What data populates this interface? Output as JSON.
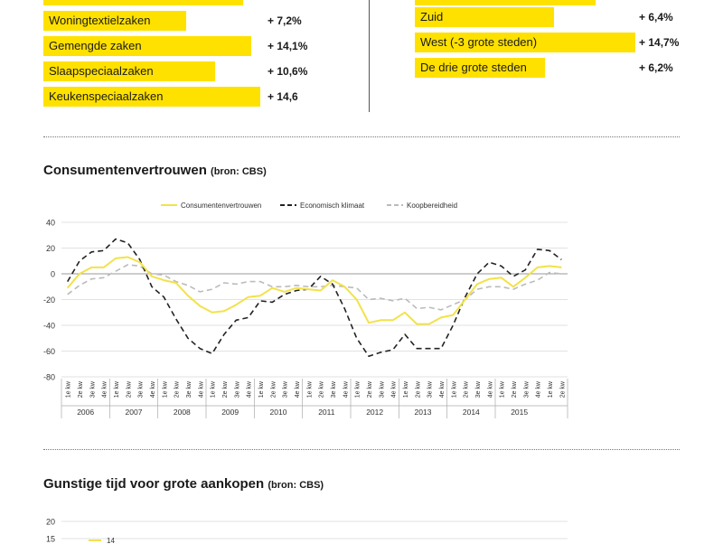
{
  "left_bars": [
    {
      "label": "",
      "value": "",
      "pct": 0.92
    },
    {
      "label": "Woningtextielzaken",
      "value": "+ 7,2%",
      "pct": 0.66
    },
    {
      "label": "Gemengde zaken",
      "value": "+ 14,1%",
      "pct": 0.96
    },
    {
      "label": "Slaapspeciaalzaken",
      "value": "+ 10,6%",
      "pct": 0.79
    },
    {
      "label": "Keukenspeciaalzaken",
      "value": "+ 14,6",
      "pct": 1.0
    }
  ],
  "right_bars": [
    {
      "label": "",
      "value": "",
      "pct": 0.82
    },
    {
      "label": "Zuid",
      "value": "+ 6,4%",
      "pct": 0.63
    },
    {
      "label": "West (-3 grote steden)",
      "value": "+ 14,7%",
      "pct": 1.0
    },
    {
      "label": "De drie grote steden",
      "value": "+ 6,2%",
      "pct": 0.59
    }
  ],
  "colors": {
    "accent": "#ffe100",
    "dark": "#222222",
    "grey": "#bbbbbb"
  },
  "chart1_title": "Consumentenvertrouwen",
  "chart1_source": "(bron: CBS)",
  "chart2_title": "Gunstige tijd voor grote aankopen",
  "chart2_source": "(bron: CBS)",
  "chart_data": [
    {
      "type": "line",
      "title": "Consumentenvertrouwen",
      "ylim": [
        -80,
        40
      ],
      "yticks": [
        40,
        20,
        0,
        -20,
        -40,
        -60,
        -80
      ],
      "grid": true,
      "legend_position": "top-center",
      "quarter_labels": [
        "1e kw",
        "2e kw",
        "3e kw",
        "4e kw"
      ],
      "years": [
        "2006",
        "2007",
        "2008",
        "2009",
        "2010",
        "2011",
        "2012",
        "2013",
        "2014",
        "2015"
      ],
      "series": [
        {
          "name": "Consumentenvertrouwen",
          "style": "solid",
          "color": "#f2e24a",
          "values": [
            -11,
            0,
            5,
            5,
            12,
            13,
            9,
            -2,
            -5,
            -7,
            -17,
            -25,
            -30,
            -29,
            -24,
            -18,
            -17,
            -11,
            -14,
            -11,
            -12,
            -13,
            -5,
            -10,
            -20,
            -38,
            -36,
            -36,
            -30,
            -39,
            -39,
            -34,
            -32,
            -20,
            -8,
            -4,
            -3,
            -10,
            -3,
            5,
            6,
            5
          ]
        },
        {
          "name": "Economisch klimaat",
          "style": "dashed",
          "color": "#222222",
          "values": [
            -6,
            10,
            17,
            18,
            27,
            24,
            11,
            -10,
            -18,
            -35,
            -50,
            -58,
            -62,
            -47,
            -36,
            -34,
            -21,
            -22,
            -16,
            -13,
            -12,
            -2,
            -8,
            -27,
            -50,
            -64,
            -61,
            -59,
            -47,
            -58,
            -58,
            -58,
            -40,
            -18,
            0,
            9,
            6,
            -2,
            3,
            19,
            18,
            11
          ]
        },
        {
          "name": "Koopbereidheid",
          "style": "dashed",
          "color": "#bbbbbb",
          "values": [
            -16,
            -9,
            -4,
            -3,
            2,
            7,
            6,
            0,
            -1,
            -6,
            -9,
            -14,
            -12,
            -7,
            -8,
            -6,
            -6,
            -10,
            -10,
            -9,
            -10,
            -10,
            -9,
            -10,
            -11,
            -20,
            -19,
            -21,
            -19,
            -27,
            -26,
            -28,
            -24,
            -20,
            -12,
            -10,
            -10,
            -12,
            -8,
            -5,
            1,
            0
          ]
        }
      ]
    },
    {
      "type": "line",
      "title": "Gunstige tijd voor grote aankopen",
      "yticks": [
        20,
        15
      ],
      "annotation": "14",
      "series": [
        {
          "name": "",
          "color": "#f2e24a",
          "values": [
            14,
            14
          ]
        }
      ]
    }
  ]
}
